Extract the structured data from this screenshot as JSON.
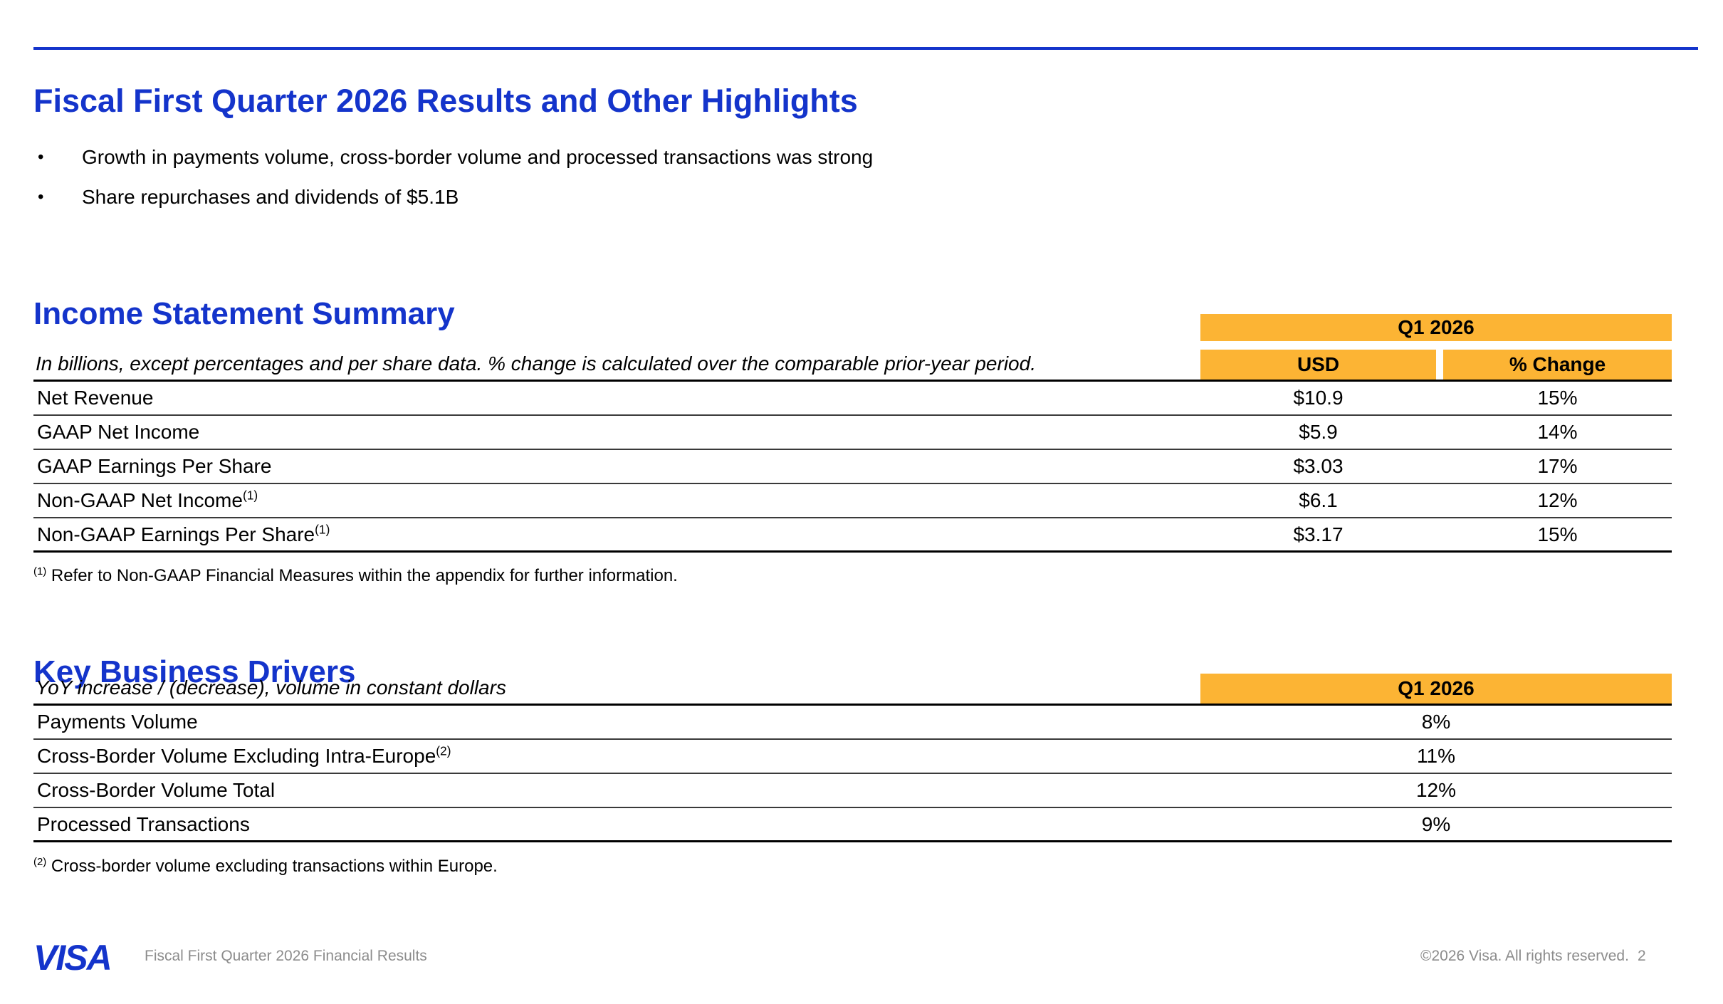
{
  "slide": {
    "title": "Fiscal First Quarter 2026 Results and Other Highlights",
    "bullet_glyph": "•",
    "bullets": [
      "Growth in payments volume, cross-border volume and processed transactions was strong",
      "Share repurchases and dividends of $5.1B"
    ]
  },
  "income_statement": {
    "heading": "Income Statement Summary",
    "note": "In billions, except percentages and per share data. % change is calculated over the comparable prior-year period.",
    "period_header": "Q1 2026",
    "col_usd": "USD",
    "col_change": "% Change",
    "rows": [
      {
        "label": "Net Revenue",
        "sup": "",
        "usd": "$10.9",
        "change": "15%"
      },
      {
        "label": "GAAP Net Income",
        "sup": "",
        "usd": "$5.9",
        "change": "14%"
      },
      {
        "label": "GAAP Earnings Per Share",
        "sup": "",
        "usd": "$3.03",
        "change": "17%"
      },
      {
        "label": "Non-GAAP Net Income",
        "sup": "(1)",
        "usd": "$6.1",
        "change": "12%"
      },
      {
        "label": "Non-GAAP Earnings Per Share",
        "sup": "(1)",
        "usd": "$3.17",
        "change": "15%"
      }
    ],
    "footnote_marker": "(1)",
    "footnote": "Refer to Non-GAAP Financial Measures within the appendix for further information."
  },
  "key_business_drivers": {
    "heading": "Key Business Drivers",
    "note": "YoY increase / (decrease), volume in constant dollars",
    "period_header": "Q1 2026",
    "rows": [
      {
        "label": "Payments Volume",
        "sup": "",
        "value": "8%"
      },
      {
        "label": "Cross-Border Volume Excluding Intra-Europe",
        "sup": "(2)",
        "value": "11%"
      },
      {
        "label": "Cross-Border Volume Total",
        "sup": "",
        "value": "12%"
      },
      {
        "label": "Processed Transactions",
        "sup": "",
        "value": "9%"
      }
    ],
    "footnote_marker": "(2)",
    "footnote": "Cross-border volume excluding transactions within Europe."
  },
  "footer": {
    "logo_text": "VISA",
    "document_title": "Fiscal First Quarter 2026 Financial Results",
    "copyright": "©2026 Visa. All rights reserved.",
    "page_number": "2"
  },
  "colors": {
    "accent_blue": "#1434CB",
    "table_header_orange": "#FCB434",
    "footer_gray": "#8C8C8C"
  }
}
